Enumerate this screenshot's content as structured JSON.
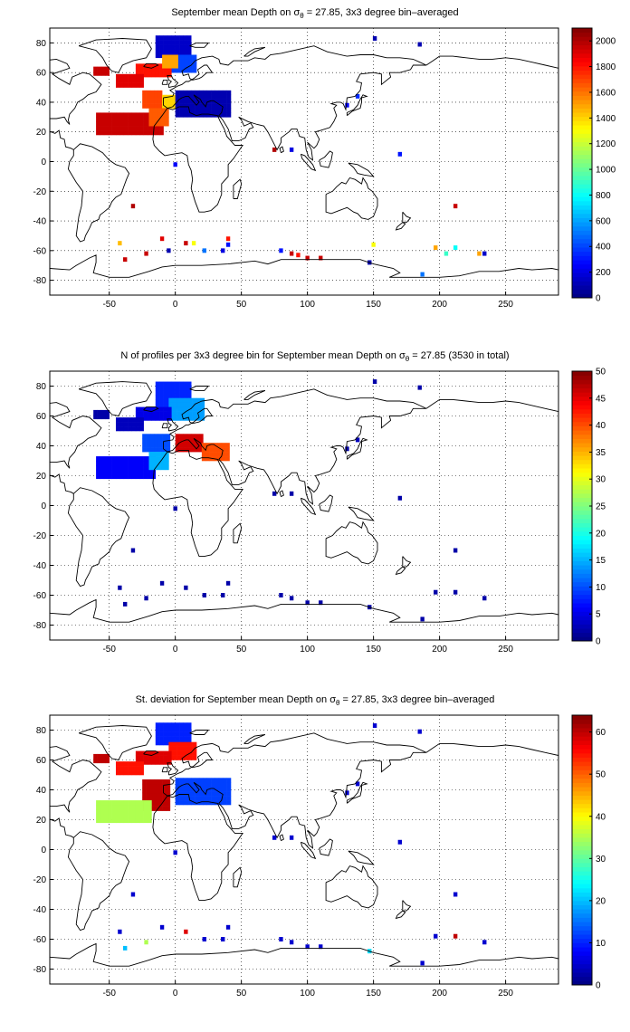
{
  "panels": [
    {
      "title_pre": "September mean Depth on σ",
      "title_sub": "θ",
      "title_post": " = 27.85, 3x3 degree bin–averaged",
      "colorbar": {
        "min": 0,
        "max": 2100,
        "ticks": [
          "0",
          "200",
          "400",
          "600",
          "800",
          "1000",
          "1200",
          "1400",
          "1600",
          "1800",
          "2000"
        ]
      }
    },
    {
      "title_pre": "N of profiles per 3x3 degree bin for September mean Depth on σ",
      "title_sub": "θ",
      "title_post": " = 27.85 (3530 in total)",
      "colorbar": {
        "min": 0,
        "max": 50,
        "ticks": [
          "0",
          "5",
          "10",
          "15",
          "20",
          "25",
          "30",
          "35",
          "40",
          "45",
          "50"
        ]
      }
    },
    {
      "title_pre": "St. deviation for September mean Depth on σ",
      "title_sub": "θ",
      "title_post": " = 27.85, 3x3 degree bin–averaged",
      "colorbar": {
        "min": 0,
        "max": 64,
        "ticks": [
          "0",
          "10",
          "20",
          "30",
          "40",
          "50",
          "60"
        ]
      }
    }
  ],
  "map_axes": {
    "x_ticks": [
      "-50",
      "0",
      "50",
      "100",
      "150",
      "200",
      "250"
    ],
    "y_ticks": [
      "80",
      "60",
      "40",
      "20",
      "0",
      "-20",
      "-40",
      "-60",
      "-80"
    ],
    "xlim": [
      -95,
      290
    ],
    "ylim": [
      -90,
      90
    ]
  },
  "colormap": "jet",
  "chart_data": [
    {
      "type": "heatmap",
      "title": "September mean Depth on σθ = 27.85, 3x3 degree bin-averaged",
      "unit_range": [
        0,
        2100
      ],
      "regions": [
        {
          "lon": [
            -15,
            10
          ],
          "lat": [
            70,
            83
          ],
          "value": 150
        },
        {
          "lon": [
            -5,
            15
          ],
          "lat": [
            60,
            70
          ],
          "value": 400
        },
        {
          "lon": [
            -30,
            -5
          ],
          "lat": [
            57,
            66
          ],
          "value": 1800
        },
        {
          "lon": [
            -10,
            0
          ],
          "lat": [
            63,
            70
          ],
          "value": 1500
        },
        {
          "lon": [
            -62,
            -50
          ],
          "lat": [
            58,
            64
          ],
          "value": 1950
        },
        {
          "lon": [
            -45,
            -25
          ],
          "lat": [
            50,
            57
          ],
          "value": 1900
        },
        {
          "lon": [
            -25,
            -10
          ],
          "lat": [
            36,
            46
          ],
          "value": 1700
        },
        {
          "lon": [
            -10,
            0
          ],
          "lat": [
            36,
            44
          ],
          "value": 1400
        },
        {
          "lon": [
            -60,
            -10
          ],
          "lat": [
            18,
            33
          ],
          "value": 1950
        },
        {
          "lon": [
            -20,
            -5
          ],
          "lat": [
            24,
            36
          ],
          "value": 1650
        },
        {
          "lon": [
            0,
            40
          ],
          "lat": [
            30,
            46
          ],
          "value": 100
        }
      ],
      "points": [
        {
          "lon": 151,
          "lat": 83,
          "value": 100
        },
        {
          "lon": 185,
          "lat": 79,
          "value": 100
        },
        {
          "lon": 138,
          "lat": 44,
          "value": 350
        },
        {
          "lon": 130,
          "lat": 38,
          "value": 250
        },
        {
          "lon": 75,
          "lat": 8,
          "value": 2000
        },
        {
          "lon": 88,
          "lat": 8,
          "value": 200
        },
        {
          "lon": 170,
          "lat": 5,
          "value": 300
        },
        {
          "lon": 0,
          "lat": -2,
          "value": 250
        },
        {
          "lon": -32,
          "lat": -30,
          "value": 2000
        },
        {
          "lon": 212,
          "lat": -30,
          "value": 1950
        },
        {
          "lon": -42,
          "lat": -55,
          "value": 1450
        },
        {
          "lon": -10,
          "lat": -52,
          "value": 1900
        },
        {
          "lon": 8,
          "lat": -55,
          "value": 1950
        },
        {
          "lon": 14,
          "lat": -55,
          "value": 1300
        },
        {
          "lon": 40,
          "lat": -52,
          "value": 1800
        },
        {
          "lon": 40,
          "lat": -56,
          "value": 300
        },
        {
          "lon": -38,
          "lat": -66,
          "value": 1950
        },
        {
          "lon": -22,
          "lat": -62,
          "value": 1950
        },
        {
          "lon": -5,
          "lat": -60,
          "value": 100
        },
        {
          "lon": 22,
          "lat": -60,
          "value": 500
        },
        {
          "lon": 36,
          "lat": -60,
          "value": 200
        },
        {
          "lon": 80,
          "lat": -60,
          "value": 300
        },
        {
          "lon": 88,
          "lat": -62,
          "value": 1950
        },
        {
          "lon": 93,
          "lat": -63,
          "value": 1800
        },
        {
          "lon": 100,
          "lat": -65,
          "value": 1950
        },
        {
          "lon": 110,
          "lat": -65,
          "value": 1950
        },
        {
          "lon": 150,
          "lat": -56,
          "value": 1300
        },
        {
          "lon": 147,
          "lat": -68,
          "value": 100
        },
        {
          "lon": 197,
          "lat": -58,
          "value": 1500
        },
        {
          "lon": 212,
          "lat": -58,
          "value": 800
        },
        {
          "lon": 205,
          "lat": -62,
          "value": 900
        },
        {
          "lon": 230,
          "lat": -62,
          "value": 1500
        },
        {
          "lon": 234,
          "lat": -62,
          "value": 150
        },
        {
          "lon": 187,
          "lat": -76,
          "value": 500
        }
      ]
    },
    {
      "type": "heatmap",
      "title": "N of profiles per 3x3 degree bin for September mean Depth on σθ = 27.85 (3530 in total)",
      "unit_range": [
        0,
        50
      ],
      "regions": [
        {
          "lon": [
            -15,
            10
          ],
          "lat": [
            65,
            83
          ],
          "value": 8
        },
        {
          "lon": [
            -5,
            20
          ],
          "lat": [
            57,
            70
          ],
          "value": 14
        },
        {
          "lon": [
            -30,
            -5
          ],
          "lat": [
            57,
            66
          ],
          "value": 5
        },
        {
          "lon": [
            -62,
            -50
          ],
          "lat": [
            58,
            64
          ],
          "value": 2
        },
        {
          "lon": [
            -45,
            -25
          ],
          "lat": [
            50,
            57
          ],
          "value": 3
        },
        {
          "lon": [
            -25,
            -5
          ],
          "lat": [
            36,
            46
          ],
          "value": 10
        },
        {
          "lon": [
            -60,
            -15
          ],
          "lat": [
            18,
            33
          ],
          "value": 6
        },
        {
          "lon": [
            -20,
            -5
          ],
          "lat": [
            24,
            36
          ],
          "value": 15
        },
        {
          "lon": [
            0,
            20
          ],
          "lat": [
            36,
            46
          ],
          "value": 46
        },
        {
          "lon": [
            20,
            40
          ],
          "lat": [
            30,
            40
          ],
          "value": 40
        }
      ],
      "points": [
        {
          "lon": 151,
          "lat": 83,
          "value": 2
        },
        {
          "lon": 185,
          "lat": 79,
          "value": 2
        },
        {
          "lon": 138,
          "lat": 44,
          "value": 3
        },
        {
          "lon": 130,
          "lat": 38,
          "value": 2
        },
        {
          "lon": 75,
          "lat": 8,
          "value": 2
        },
        {
          "lon": 88,
          "lat": 8,
          "value": 2
        },
        {
          "lon": 170,
          "lat": 5,
          "value": 2
        },
        {
          "lon": 0,
          "lat": -2,
          "value": 2
        },
        {
          "lon": -32,
          "lat": -30,
          "value": 2
        },
        {
          "lon": 212,
          "lat": -30,
          "value": 2
        },
        {
          "lon": -42,
          "lat": -55,
          "value": 2
        },
        {
          "lon": -10,
          "lat": -52,
          "value": 2
        },
        {
          "lon": 8,
          "lat": -55,
          "value": 2
        },
        {
          "lon": 40,
          "lat": -52,
          "value": 2
        },
        {
          "lon": -38,
          "lat": -66,
          "value": 2
        },
        {
          "lon": -22,
          "lat": -62,
          "value": 2
        },
        {
          "lon": 22,
          "lat": -60,
          "value": 2
        },
        {
          "lon": 36,
          "lat": -60,
          "value": 2
        },
        {
          "lon": 80,
          "lat": -60,
          "value": 2
        },
        {
          "lon": 88,
          "lat": -62,
          "value": 2
        },
        {
          "lon": 100,
          "lat": -65,
          "value": 2
        },
        {
          "lon": 110,
          "lat": -65,
          "value": 2
        },
        {
          "lon": 147,
          "lat": -68,
          "value": 2
        },
        {
          "lon": 197,
          "lat": -58,
          "value": 2
        },
        {
          "lon": 212,
          "lat": -58,
          "value": 2
        },
        {
          "lon": 234,
          "lat": -62,
          "value": 2
        },
        {
          "lon": 187,
          "lat": -76,
          "value": 2
        }
      ]
    },
    {
      "type": "heatmap",
      "title": "St. deviation for September mean Depth on σθ = 27.85, 3x3 degree bin-averaged",
      "unit_range": [
        0,
        64
      ],
      "regions": [
        {
          "lon": [
            -15,
            10
          ],
          "lat": [
            70,
            83
          ],
          "value": 10
        },
        {
          "lon": [
            -5,
            15
          ],
          "lat": [
            60,
            72
          ],
          "value": 55
        },
        {
          "lon": [
            -30,
            -5
          ],
          "lat": [
            57,
            66
          ],
          "value": 58
        },
        {
          "lon": [
            -62,
            -50
          ],
          "lat": [
            58,
            64
          ],
          "value": 60
        },
        {
          "lon": [
            -45,
            -25
          ],
          "lat": [
            50,
            57
          ],
          "value": 55
        },
        {
          "lon": [
            -25,
            -5
          ],
          "lat": [
            26,
            46
          ],
          "value": 60
        },
        {
          "lon": [
            -60,
            -20
          ],
          "lat": [
            18,
            33
          ],
          "value": 35
        },
        {
          "lon": [
            0,
            40
          ],
          "lat": [
            30,
            46
          ],
          "value": 12
        }
      ],
      "points": [
        {
          "lon": 151,
          "lat": 83,
          "value": 5
        },
        {
          "lon": 185,
          "lat": 79,
          "value": 5
        },
        {
          "lon": 138,
          "lat": 44,
          "value": 5
        },
        {
          "lon": 130,
          "lat": 38,
          "value": 5
        },
        {
          "lon": 75,
          "lat": 8,
          "value": 5
        },
        {
          "lon": 88,
          "lat": 8,
          "value": 5
        },
        {
          "lon": 170,
          "lat": 5,
          "value": 5
        },
        {
          "lon": 0,
          "lat": -2,
          "value": 5
        },
        {
          "lon": -32,
          "lat": -30,
          "value": 5
        },
        {
          "lon": 212,
          "lat": -30,
          "value": 5
        },
        {
          "lon": -42,
          "lat": -55,
          "value": 5
        },
        {
          "lon": -10,
          "lat": -52,
          "value": 5
        },
        {
          "lon": 8,
          "lat": -55,
          "value": 58
        },
        {
          "lon": 40,
          "lat": -52,
          "value": 5
        },
        {
          "lon": -38,
          "lat": -66,
          "value": 20
        },
        {
          "lon": -22,
          "lat": -62,
          "value": 35
        },
        {
          "lon": 22,
          "lat": -60,
          "value": 5
        },
        {
          "lon": 36,
          "lat": -60,
          "value": 5
        },
        {
          "lon": 80,
          "lat": -60,
          "value": 5
        },
        {
          "lon": 88,
          "lat": -62,
          "value": 5
        },
        {
          "lon": 100,
          "lat": -65,
          "value": 5
        },
        {
          "lon": 110,
          "lat": -65,
          "value": 5
        },
        {
          "lon": 147,
          "lat": -68,
          "value": 22
        },
        {
          "lon": 197,
          "lat": -58,
          "value": 5
        },
        {
          "lon": 212,
          "lat": -58,
          "value": 60
        },
        {
          "lon": 234,
          "lat": -62,
          "value": 5
        },
        {
          "lon": 187,
          "lat": -76,
          "value": 5
        }
      ]
    }
  ]
}
